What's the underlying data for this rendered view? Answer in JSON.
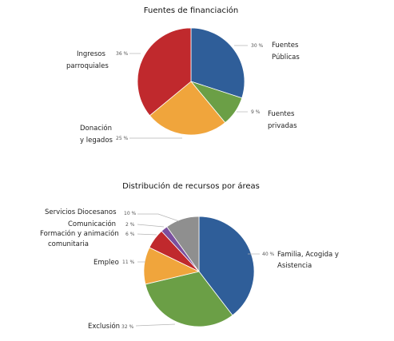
{
  "chart_data": [
    {
      "type": "pie",
      "title": "Fuentes de financiación",
      "slices": [
        {
          "label_lines": [
            "Fuentes",
            "Públicas"
          ],
          "value": 30,
          "pct_label": "30 %",
          "color": "#2f5e99"
        },
        {
          "label_lines": [
            "Fuentes",
            "privadas"
          ],
          "value": 9,
          "pct_label": "9 %",
          "color": "#6b9f46"
        },
        {
          "label_lines": [
            "Donación",
            "y legados"
          ],
          "value": 25,
          "pct_label": "25 %",
          "color": "#f0a53c"
        },
        {
          "label_lines": [
            "Ingresos",
            "parroquiales"
          ],
          "value": 36,
          "pct_label": "36 %",
          "color": "#c0292d"
        }
      ]
    },
    {
      "type": "pie",
      "title": "Distribución de recursos por áreas",
      "slices": [
        {
          "label_lines": [
            "Familia, Acogida y",
            "Asistencia"
          ],
          "value": 40,
          "pct_label": "40 %",
          "color": "#2f5e99"
        },
        {
          "label_lines": [
            "Exclusión"
          ],
          "value": 32,
          "pct_label": "32 %",
          "color": "#6b9f46"
        },
        {
          "label_lines": [
            "Empleo"
          ],
          "value": 11,
          "pct_label": "11 %",
          "color": "#f0a53c"
        },
        {
          "label_lines": [
            "Formación y animación",
            "comunitaria"
          ],
          "value": 6,
          "pct_label": "6 %",
          "color": "#c0292d"
        },
        {
          "label_lines": [
            "Comunicación"
          ],
          "value": 2,
          "pct_label": "2 %",
          "color": "#7b4f9e"
        },
        {
          "label_lines": [
            "Servicios Diocesanos"
          ],
          "value": 10,
          "pct_label": "10 %",
          "color": "#8f8f8f"
        }
      ]
    }
  ]
}
